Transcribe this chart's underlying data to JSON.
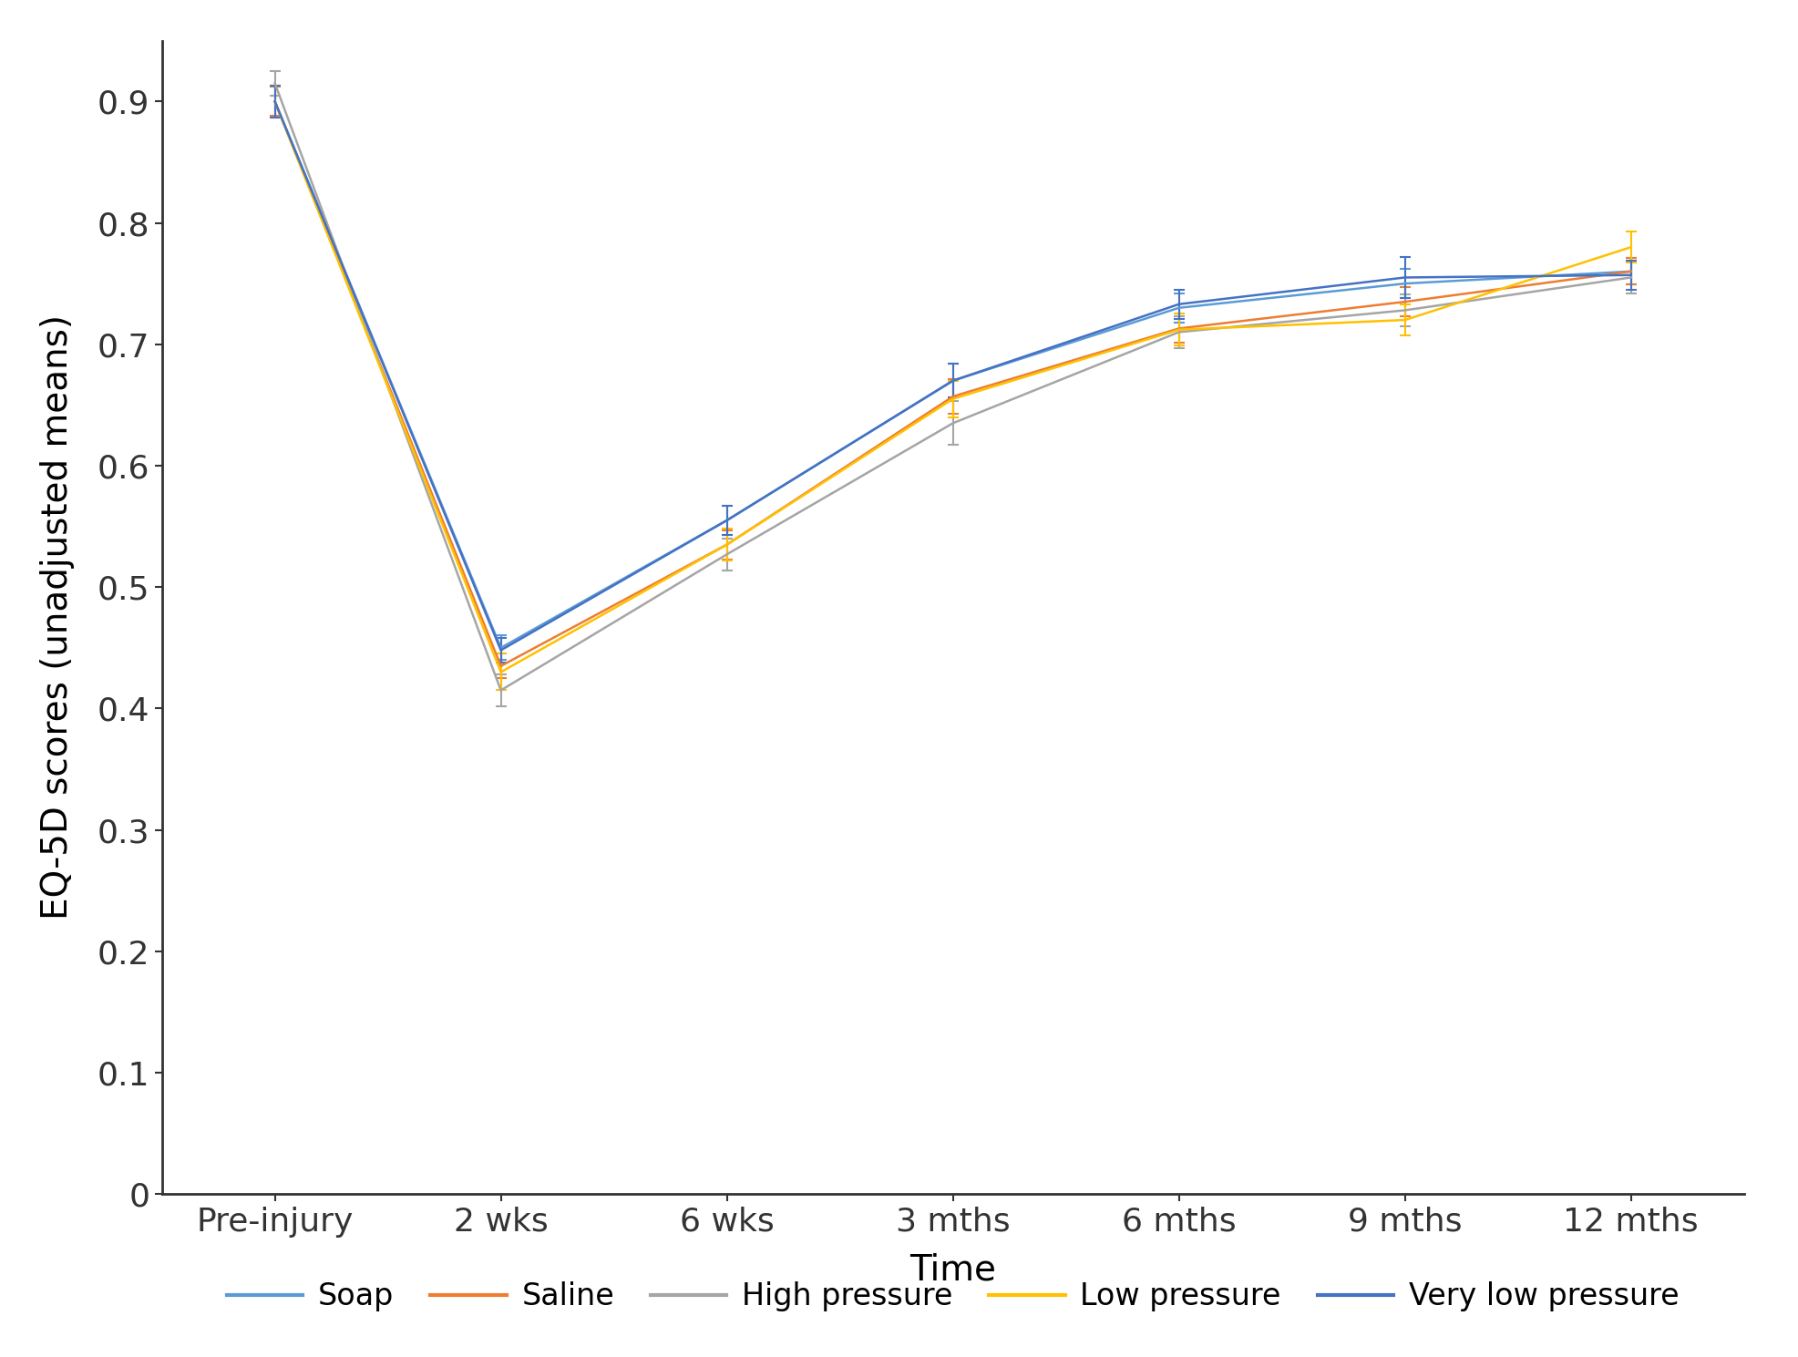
{
  "x_labels": [
    "Pre-injury",
    "2 wks",
    "6 wks",
    "3 mths",
    "6 mths",
    "9 mths",
    "12 mths"
  ],
  "x_positions": [
    0,
    1,
    2,
    3,
    4,
    5,
    6
  ],
  "series": {
    "Soap": {
      "color": "#5B9BD5",
      "values": [
        0.9,
        0.45,
        0.555,
        0.67,
        0.73,
        0.75,
        0.76
      ],
      "yerr_low": [
        0.012,
        0.01,
        0.012,
        0.014,
        0.012,
        0.012,
        0.011
      ],
      "yerr_high": [
        0.012,
        0.01,
        0.012,
        0.014,
        0.012,
        0.012,
        0.011
      ]
    },
    "Saline": {
      "color": "#ED7D31",
      "values": [
        0.9,
        0.435,
        0.535,
        0.657,
        0.713,
        0.735,
        0.76
      ],
      "yerr_low": [
        0.012,
        0.01,
        0.012,
        0.014,
        0.012,
        0.012,
        0.011
      ],
      "yerr_high": [
        0.012,
        0.01,
        0.012,
        0.014,
        0.012,
        0.012,
        0.011
      ]
    },
    "High pressure": {
      "color": "#A5A5A5",
      "values": [
        0.915,
        0.415,
        0.527,
        0.635,
        0.71,
        0.728,
        0.755
      ],
      "yerr_low": [
        0.01,
        0.013,
        0.013,
        0.018,
        0.013,
        0.013,
        0.013
      ],
      "yerr_high": [
        0.01,
        0.013,
        0.013,
        0.018,
        0.013,
        0.013,
        0.013
      ]
    },
    "Low pressure": {
      "color": "#FFC000",
      "values": [
        0.9,
        0.43,
        0.535,
        0.655,
        0.712,
        0.72,
        0.78
      ],
      "yerr_low": [
        0.013,
        0.015,
        0.013,
        0.015,
        0.013,
        0.013,
        0.013
      ],
      "yerr_high": [
        0.013,
        0.015,
        0.013,
        0.015,
        0.013,
        0.013,
        0.013
      ]
    },
    "Very low pressure": {
      "color": "#4472C4",
      "values": [
        0.9,
        0.448,
        0.555,
        0.67,
        0.733,
        0.755,
        0.757
      ],
      "yerr_low": [
        0.013,
        0.01,
        0.012,
        0.014,
        0.012,
        0.017,
        0.012
      ],
      "yerr_high": [
        0.013,
        0.01,
        0.012,
        0.014,
        0.012,
        0.017,
        0.012
      ]
    }
  },
  "ylabel": "EQ-5D scores (unadjusted means)",
  "xlabel": "Time",
  "ylim": [
    0,
    0.95
  ],
  "yticks": [
    0,
    0.1,
    0.2,
    0.3,
    0.4,
    0.5,
    0.6,
    0.7,
    0.8,
    0.9
  ],
  "ytick_labels": [
    "0",
    "0.1",
    "0.2",
    "0.3",
    "0.4",
    "0.5",
    "0.6",
    "0.7",
    "0.8",
    "0.9"
  ],
  "background_color": "#FFFFFF",
  "figsize": [
    19.73,
    14.89
  ],
  "dpi": 100,
  "linewidth": 1.8,
  "capsize": 4,
  "legend_order": [
    "Soap",
    "Saline",
    "High pressure",
    "Low pressure",
    "Very low pressure"
  ]
}
